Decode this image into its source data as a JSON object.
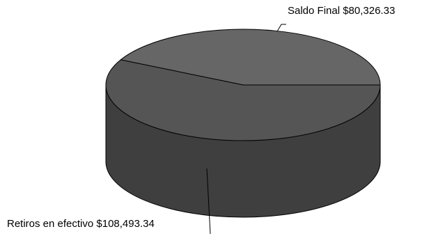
{
  "chart_data": {
    "type": "pie",
    "style": "3d",
    "title": "",
    "slices": [
      {
        "name": "Saldo Final",
        "value": 80326.33,
        "label": "Saldo Final $80,326.33",
        "color": "#666666"
      },
      {
        "name": "Retiros en efectivo",
        "value": 108493.34,
        "label": "Retiros en efectivo $108,493.34",
        "color": "#555555"
      }
    ],
    "side_color": "#3f3f3f",
    "outline_color": "#000000",
    "legend": "none"
  }
}
